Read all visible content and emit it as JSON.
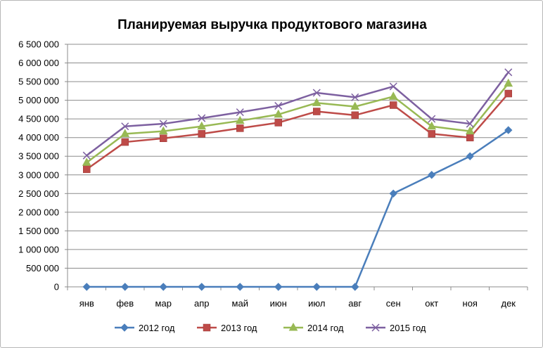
{
  "chart_data": {
    "type": "line",
    "title": "Планируемая выручка продуктового магазина",
    "categories": [
      "янв",
      "фев",
      "мар",
      "апр",
      "май",
      "июн",
      "июл",
      "авг",
      "сен",
      "окт",
      "ноя",
      "дек"
    ],
    "ylim": [
      0,
      6500000
    ],
    "y_ticks": [
      0,
      500000,
      1000000,
      1500000,
      2000000,
      2500000,
      3000000,
      3500000,
      4000000,
      4500000,
      5000000,
      5500000,
      6000000,
      6500000
    ],
    "y_tick_labels": [
      "0",
      "500 000",
      "1 000 000",
      "1 500 000",
      "2 000 000",
      "2 500 000",
      "3 000 000",
      "3 500 000",
      "4 000 000",
      "4 500 000",
      "5 000 000",
      "5 500 000",
      "6 000 000",
      "6 500 000"
    ],
    "grid": "horizontal",
    "legend": "bottom",
    "series": [
      {
        "name": "2012 год",
        "color": "#4a7ebb",
        "marker": "diamond",
        "values": [
          0,
          0,
          0,
          0,
          0,
          0,
          0,
          0,
          2500000,
          3000000,
          3500000,
          4200000
        ]
      },
      {
        "name": "2013 год",
        "color": "#be4b48",
        "marker": "square",
        "values": [
          3150000,
          3880000,
          3980000,
          4100000,
          4250000,
          4400000,
          4700000,
          4600000,
          4870000,
          4100000,
          4000000,
          5180000
        ]
      },
      {
        "name": "2014 год",
        "color": "#98b954",
        "marker": "triangle",
        "values": [
          3330000,
          4100000,
          4170000,
          4300000,
          4450000,
          4620000,
          4930000,
          4830000,
          5100000,
          4300000,
          4170000,
          5450000
        ]
      },
      {
        "name": "2015 год",
        "color": "#7d60a0",
        "marker": "x",
        "values": [
          3520000,
          4300000,
          4370000,
          4520000,
          4680000,
          4850000,
          5200000,
          5080000,
          5370000,
          4500000,
          4370000,
          5750000
        ]
      }
    ]
  }
}
